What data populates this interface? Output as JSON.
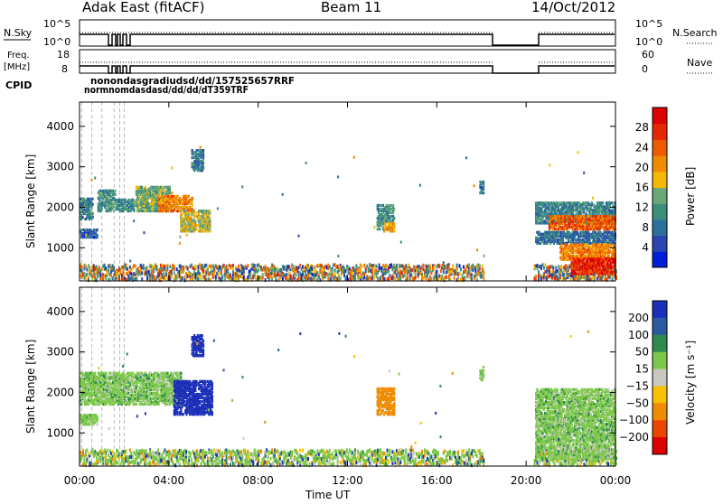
{
  "header": {
    "station": "Adak East (fitACF)",
    "beam": "Beam 11",
    "date": "14/Oct/2012"
  },
  "aux_panels": {
    "nsky_label": "N.Sky",
    "nsearch_label": "N.Search",
    "nsky_ticks": [
      "10^5",
      "10^0"
    ],
    "nsearch_ticks": [
      "10^5",
      "10^0"
    ],
    "freq_label_line1": "Freq.",
    "freq_label_line2": "[MHz]",
    "freq_ticks": [
      "18",
      "8"
    ],
    "nave_label": "Nave",
    "nave_ticks": [
      "60",
      "0"
    ],
    "cpid_label": "CPID",
    "cpid_top": "nonondasgradiudsd/dd/157525657RRF",
    "cpid_bottom": "normnomdasdasd/dd/dd/dT359TRF"
  },
  "chart_data": [
    {
      "type": "heatmap",
      "name": "power",
      "ylabel": "Slant Range [km]",
      "xlabel": "Time UT",
      "x_ticks": [
        "00:00",
        "04:00",
        "08:00",
        "12:00",
        "16:00",
        "20:00",
        "00:00"
      ],
      "y_ticks": [
        1000,
        2000,
        3000,
        4000
      ],
      "ylim": [
        180,
        4600
      ],
      "xlim_hours": [
        0,
        24
      ],
      "colorbar_label": "Power [dB]",
      "colorbar_ticks": [
        4,
        8,
        12,
        16,
        20,
        24,
        28
      ],
      "colorbar_range": [
        0,
        32
      ],
      "colorbar_colors": [
        "#0020d8",
        "#2b45b0",
        "#2c6f9a",
        "#3b8f7a",
        "#6aa878",
        "#f5b800",
        "#f08a00",
        "#ee5a00",
        "#e62800",
        "#dd0000"
      ],
      "data_gap_hours": [
        18.1,
        20.3
      ],
      "regions": [
        {
          "t0": 0.0,
          "t1": 0.6,
          "r0": 1700,
          "r1": 2200,
          "level": 10
        },
        {
          "t0": 0.0,
          "t1": 0.8,
          "r0": 1250,
          "r1": 1450,
          "level": 6
        },
        {
          "t0": 0.8,
          "t1": 1.6,
          "r0": 1900,
          "r1": 2400,
          "level": 12
        },
        {
          "t0": 1.6,
          "t1": 2.4,
          "r0": 1900,
          "r1": 2200,
          "level": 11
        },
        {
          "t0": 2.5,
          "t1": 4.0,
          "r0": 1900,
          "r1": 2500,
          "level": 14
        },
        {
          "t0": 3.5,
          "t1": 5.0,
          "r0": 1900,
          "r1": 2300,
          "level": 22
        },
        {
          "t0": 4.5,
          "t1": 5.8,
          "r0": 1400,
          "r1": 1900,
          "level": 16
        },
        {
          "t0": 5.0,
          "t1": 5.5,
          "r0": 2900,
          "r1": 3400,
          "level": 9
        },
        {
          "t0": 13.3,
          "t1": 14.1,
          "r0": 1450,
          "r1": 2050,
          "level": 12
        },
        {
          "t0": 13.6,
          "t1": 14.1,
          "r0": 1400,
          "r1": 1600,
          "level": 20
        },
        {
          "t0": 17.9,
          "t1": 18.1,
          "r0": 2300,
          "r1": 2650,
          "level": 9
        },
        {
          "t0": 20.4,
          "t1": 24.0,
          "r0": 1600,
          "r1": 2100,
          "level": 10
        },
        {
          "t0": 21.0,
          "t1": 24.0,
          "r0": 1450,
          "r1": 1800,
          "level": 24
        },
        {
          "t0": 20.4,
          "t1": 24.0,
          "r0": 1100,
          "r1": 1400,
          "level": 8
        },
        {
          "t0": 21.5,
          "t1": 24.0,
          "r0": 700,
          "r1": 1100,
          "level": 22
        },
        {
          "t0": 22.0,
          "t1": 24.0,
          "r0": 350,
          "r1": 750,
          "level": 28
        }
      ]
    },
    {
      "type": "heatmap",
      "name": "velocity",
      "ylabel": "Slant Range [km]",
      "xlabel": "Time UT",
      "x_ticks": [
        "00:00",
        "04:00",
        "08:00",
        "12:00",
        "16:00",
        "20:00",
        "00:00"
      ],
      "y_ticks": [
        1000,
        2000,
        3000,
        4000
      ],
      "ylim": [
        180,
        4600
      ],
      "xlim_hours": [
        0,
        24
      ],
      "colorbar_label": "Velocity [m s⁻¹]",
      "colorbar_ticks": [
        "200",
        "100",
        "50",
        "15",
        "−15",
        "−50",
        "−100",
        "−200"
      ],
      "colorbar_colors": [
        "#1c2fb8",
        "#2c5aa0",
        "#2f8a4f",
        "#7dc84a",
        "#c8c8c0",
        "#f7c000",
        "#ef8b00",
        "#e94700",
        "#dd0000"
      ],
      "data_gap_hours": [
        18.1,
        20.3
      ],
      "regions": [
        {
          "t0": 0.0,
          "t1": 4.5,
          "r0": 1700,
          "r1": 2500,
          "level": 0
        },
        {
          "t0": 0.0,
          "t1": 0.8,
          "r0": 1200,
          "r1": 1450,
          "level": 0
        },
        {
          "t0": 4.2,
          "t1": 5.9,
          "r0": 1450,
          "r1": 2300,
          "level": 150
        },
        {
          "t0": 5.0,
          "t1": 5.5,
          "r0": 2900,
          "r1": 3400,
          "level": 150
        },
        {
          "t0": 13.3,
          "t1": 14.1,
          "r0": 1450,
          "r1": 2100,
          "level": -150
        },
        {
          "t0": 17.9,
          "t1": 18.1,
          "r0": 2300,
          "r1": 2650,
          "level": 0
        },
        {
          "t0": 20.4,
          "t1": 24.0,
          "r0": 350,
          "r1": 2100,
          "level": 0
        }
      ]
    }
  ]
}
